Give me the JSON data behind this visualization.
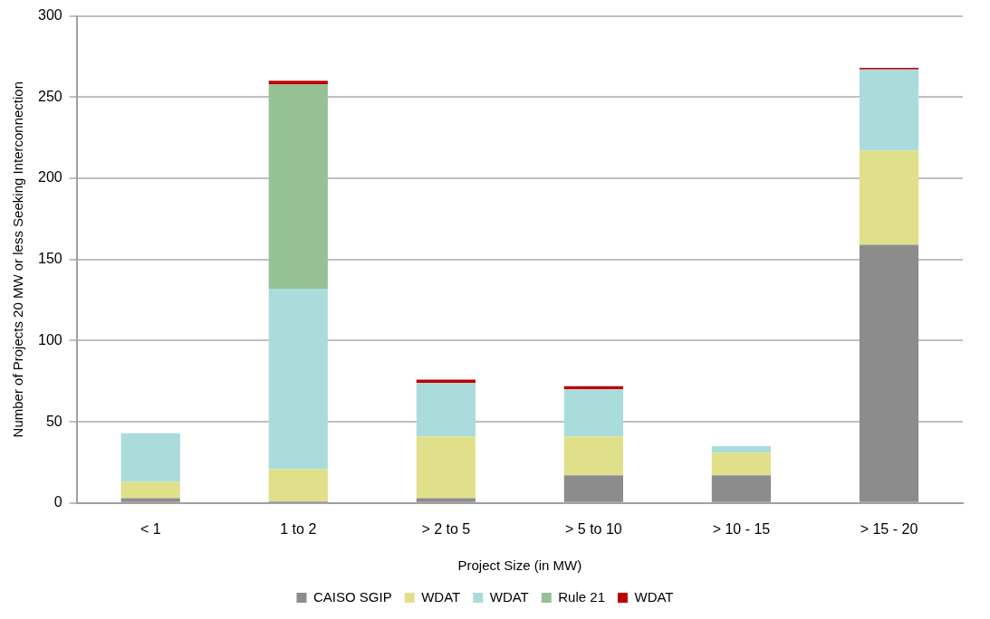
{
  "chart_data": {
    "type": "bar",
    "stacked": true,
    "xlabel": "Project Size (in MW)",
    "ylabel": "Number of Projects 20 MW or less Seeking Interconnection",
    "categories": [
      "< 1",
      "1 to 2",
      "> 2 to 5",
      "> 5 to 10",
      "> 10 - 15",
      "> 15 - 20"
    ],
    "series": [
      {
        "name": "CAISO SGIP",
        "color": "#8c8c8c",
        "values": [
          3,
          1,
          3,
          17,
          17,
          159
        ]
      },
      {
        "name": "WDAT",
        "color": "#e0e08a",
        "values": [
          10,
          20,
          38,
          24,
          14,
          58
        ]
      },
      {
        "name": "WDAT",
        "color": "#aadcdc",
        "values": [
          30,
          111,
          33,
          29,
          4,
          50
        ]
      },
      {
        "name": "Rule 21",
        "color": "#96c096",
        "values": [
          0,
          126,
          0,
          0,
          0,
          0
        ]
      },
      {
        "name": "WDAT",
        "color": "#c00000",
        "values": [
          0,
          2,
          2,
          2,
          0,
          1
        ]
      }
    ],
    "ylim": [
      0,
      300
    ],
    "yticks": [
      0,
      50,
      100,
      150,
      200,
      250,
      300
    ],
    "grid": "y",
    "legend": "bottom"
  }
}
